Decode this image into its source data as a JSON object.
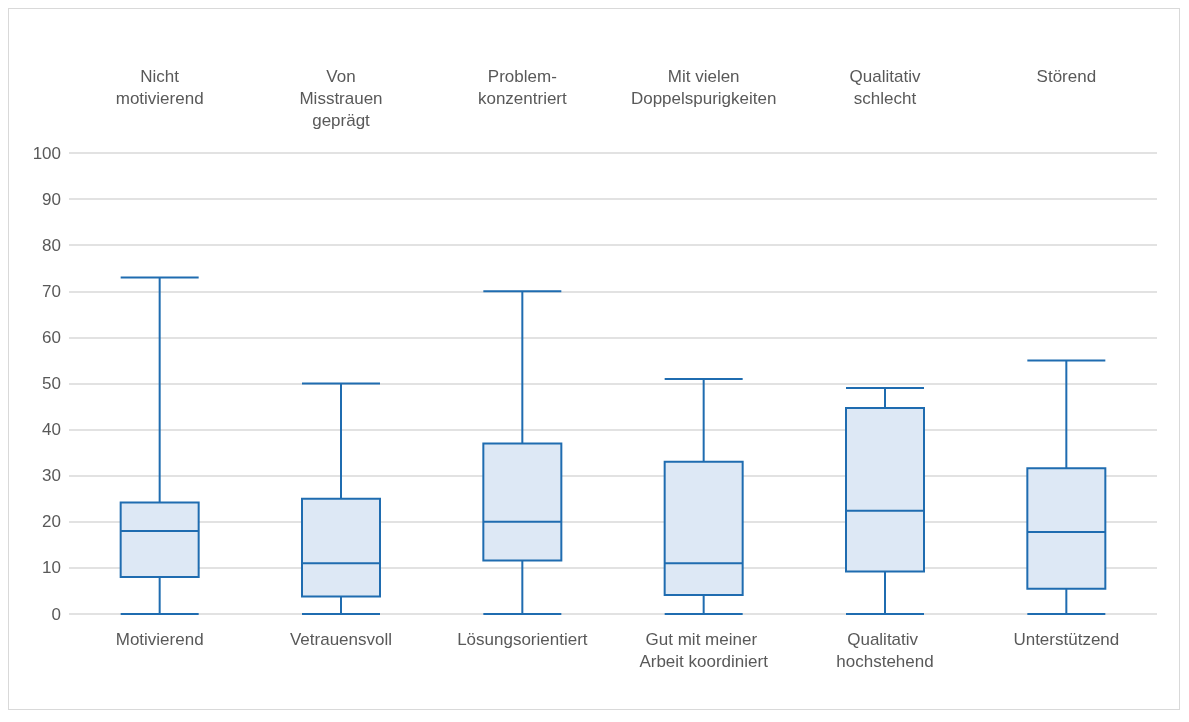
{
  "chart_data": {
    "type": "box",
    "categories": [
      "Motivierend",
      "Vetrauensvoll",
      "Lösungsorientiert",
      "Gut mit meiner Arbeit koordiniert",
      "Qualitativ hochstehend",
      "Unterstützend"
    ],
    "boxes": [
      {
        "low": 0,
        "q1": 8,
        "median": 18,
        "q3": 24.2,
        "high": 73
      },
      {
        "low": 0,
        "q1": 3.8,
        "median": 11,
        "q3": 25,
        "high": 50
      },
      {
        "low": 0,
        "q1": 11.6,
        "median": 20,
        "q3": 37,
        "high": 70
      },
      {
        "low": 0,
        "q1": 4.1,
        "median": 11,
        "q3": 33,
        "high": 51
      },
      {
        "low": 0,
        "q1": 9.2,
        "median": 22.4,
        "q3": 44.7,
        "high": 49
      },
      {
        "low": 0,
        "q1": 5.5,
        "median": 17.8,
        "q3": 31.6,
        "high": 55
      }
    ],
    "color": "#1f6cb0",
    "annotations": [
      "Nicht\nmotivierend",
      "Von\nMisstrauen\ngeprägt",
      "Problem-\nkonzentriert",
      "Mit vielen\nDoppelspurigkeiten",
      "Qualitativ\nschlecht",
      "Störend"
    ],
    "ylim": [
      0,
      100
    ],
    "yticks": [
      0,
      10,
      20,
      30,
      40,
      50,
      60,
      70,
      80,
      90,
      100
    ],
    "grid": "y"
  }
}
